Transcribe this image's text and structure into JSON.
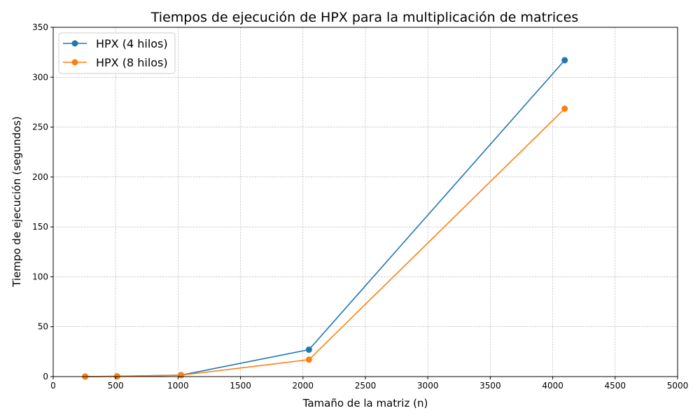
{
  "chart_data": {
    "type": "line",
    "title": "Tiempos de ejecución de HPX para la multiplicación de matrices",
    "xlabel": "Tamaño de la matriz (n)",
    "ylabel": "Tiempo de ejecución (segundos)",
    "xlim": [
      0,
      5000
    ],
    "ylim": [
      0,
      350
    ],
    "xticks": [
      0,
      500,
      1000,
      1500,
      2000,
      2500,
      3000,
      3500,
      4000,
      4500,
      5000
    ],
    "yticks": [
      0,
      50,
      100,
      150,
      200,
      250,
      300,
      350
    ],
    "grid": true,
    "legend_position": "top-left",
    "x": [
      256,
      512,
      1024,
      2048,
      4096
    ],
    "series": [
      {
        "name": "HPX (4 hilos)",
        "color": "#1f77b4",
        "values": [
          0.05,
          0.3,
          1.5,
          27,
          317
        ]
      },
      {
        "name": "HPX (8 hilos)",
        "color": "#ff7f0e",
        "values": [
          0.03,
          0.2,
          1.4,
          17,
          268.5
        ]
      }
    ]
  }
}
